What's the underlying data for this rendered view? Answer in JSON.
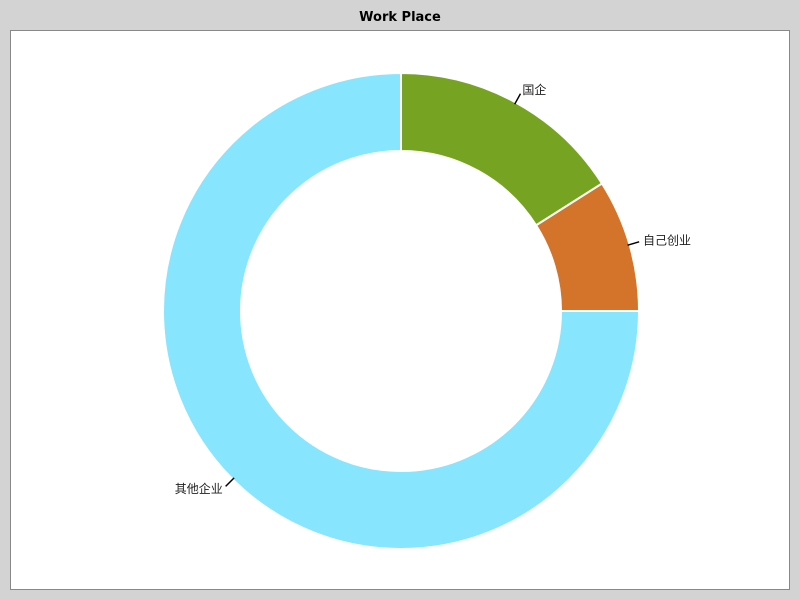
{
  "chart_data": {
    "type": "pie",
    "style": "donut",
    "title": "Work Place",
    "categories": [
      "其他企业",
      "自己创业",
      "国企"
    ],
    "values": [
      75,
      9,
      16
    ],
    "colors": [
      "#87e5fd",
      "#d4732a",
      "#77a323"
    ],
    "legend": "none",
    "grid": false
  }
}
